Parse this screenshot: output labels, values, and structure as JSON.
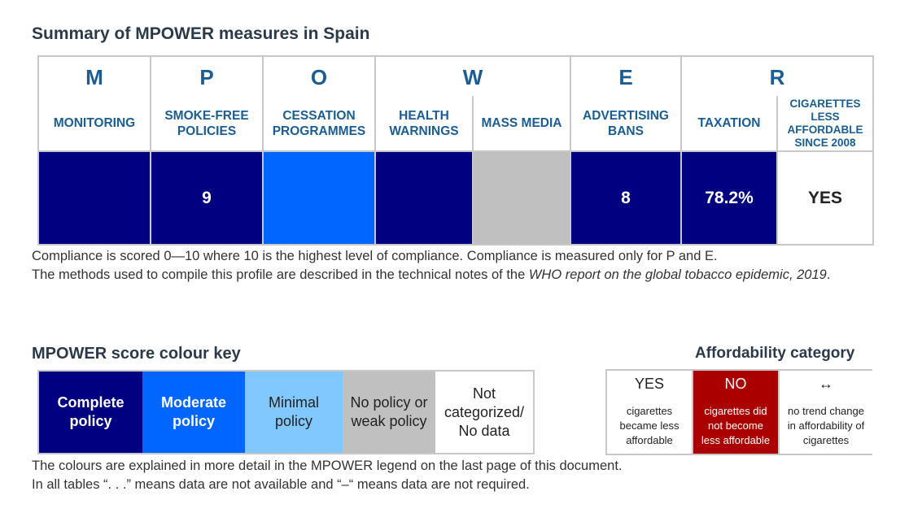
{
  "title": "Summary of MPOWER measures in Spain",
  "letters": [
    "M",
    "P",
    "O",
    "W",
    "E",
    "R"
  ],
  "subheaders": {
    "monitoring": "MONITORING",
    "smoke_free_1": "SMOKE-FREE",
    "smoke_free_2": "POLICIES",
    "cessation_1": "CESSATION",
    "cessation_2": "PROGRAMMES",
    "health_1": "HEALTH",
    "health_2": "WARNINGS",
    "mass_media": "MASS MEDIA",
    "advertising_1": "ADVERTISING",
    "advertising_2": "BANS",
    "taxation": "TAXATION",
    "cig_1": "CIGARETTES",
    "cig_2": "LESS",
    "cig_3": "AFFORDABLE",
    "cig_4": "SINCE 2008"
  },
  "values": {
    "monitoring": "",
    "smoke_free": "9",
    "cessation": "",
    "health_warnings": "",
    "mass_media": "",
    "advertising_bans": "8",
    "taxation": "78.2%",
    "cigarettes_less_affordable": "YES"
  },
  "colors": {
    "complete": "#000080",
    "moderate": "#0066ff",
    "minimal": "#80c8ff",
    "no_policy": "#c0c0c0",
    "not_categorized": "#ffffff",
    "affordability_no": "#aa0000",
    "heading": "#1a5d93"
  },
  "notes": {
    "line1": "Compliance is scored 0—10 where 10 is the highest level of compliance. Compliance is measured only for P and E.",
    "line2_prefix": "The methods used to compile this profile are described in the technical notes of the ",
    "line2_italic": "WHO report on the global tobacco epidemic, 2019",
    "line2_suffix": "."
  },
  "colour_key": {
    "heading": "MPOWER score colour key",
    "complete_1": "Complete",
    "complete_2": "policy",
    "moderate_1": "Moderate",
    "moderate_2": "policy",
    "minimal_1": "Minimal",
    "minimal_2": "policy",
    "no_policy_1": "No policy or",
    "no_policy_2": "weak policy",
    "not_cat_1": "Not",
    "not_cat_2": "categorized/",
    "not_cat_3": "No data"
  },
  "affordability": {
    "heading": "Affordability category",
    "yes_label": "YES",
    "yes_desc_1": "cigarettes",
    "yes_desc_2": "became less",
    "yes_desc_3": "affordable",
    "no_label": "NO",
    "no_desc_1": "cigarettes did",
    "no_desc_2": "not become",
    "no_desc_3": "less affordable",
    "trend_icon": "↔",
    "trend_desc_1": "no trend change",
    "trend_desc_2": "in affordability of",
    "trend_desc_3": "cigarettes"
  },
  "footer": {
    "line1": "The colours are explained in more detail in the MPOWER legend on the last page of this document.",
    "line2": "In all tables “. . .” means data are not available and “–“ means data are not required."
  }
}
